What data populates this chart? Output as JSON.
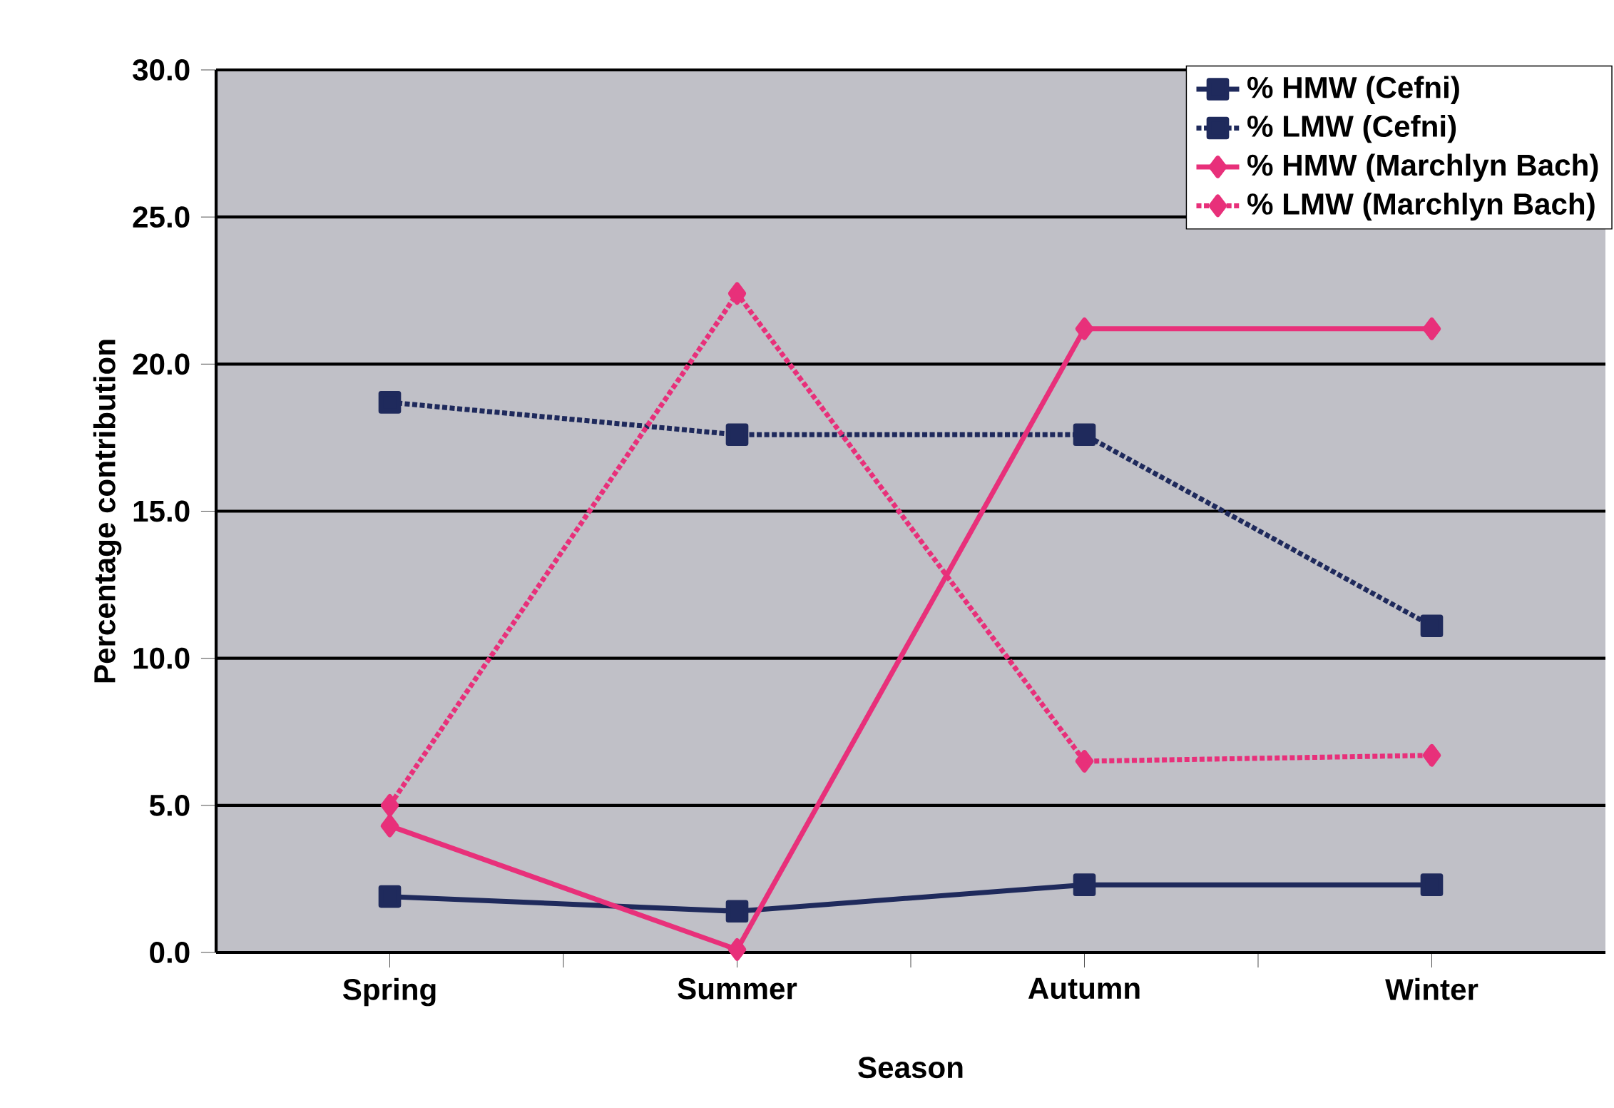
{
  "chart_data": {
    "type": "line",
    "xlabel": "Season",
    "ylabel": "Percentage contribution",
    "categories": [
      "Spring",
      "Summer",
      "Autumn",
      "Winter"
    ],
    "ylim": [
      0,
      30
    ],
    "yticks": [
      {
        "value": 0,
        "label": "0.0"
      },
      {
        "value": 5,
        "label": "5.0"
      },
      {
        "value": 10,
        "label": "10.0"
      },
      {
        "value": 15,
        "label": "15.0"
      },
      {
        "value": 20,
        "label": "20.0"
      },
      {
        "value": 25,
        "label": "25.0"
      },
      {
        "value": 30,
        "label": "30.0"
      }
    ],
    "grid": "y",
    "legend": "top right",
    "series": [
      {
        "name": "% HMW (Cefni)",
        "color": "#1f2a5c",
        "marker": "square",
        "line_style": "solid",
        "values": [
          1.9,
          1.4,
          2.3,
          2.3
        ]
      },
      {
        "name": "% LMW (Cefni)",
        "color": "#1f2a5c",
        "marker": "square",
        "line_style": "dotted",
        "values": [
          18.7,
          17.6,
          17.6,
          11.1
        ]
      },
      {
        "name": "% HMW (Marchlyn Bach)",
        "color": "#e8307a",
        "marker": "diamond",
        "line_style": "solid",
        "values": [
          4.3,
          0.1,
          21.2,
          21.2
        ]
      },
      {
        "name": "% LMW (Marchlyn Bach)",
        "color": "#e8307a",
        "marker": "diamond",
        "line_style": "dotted",
        "values": [
          5.0,
          22.4,
          6.5,
          6.7
        ]
      }
    ]
  }
}
